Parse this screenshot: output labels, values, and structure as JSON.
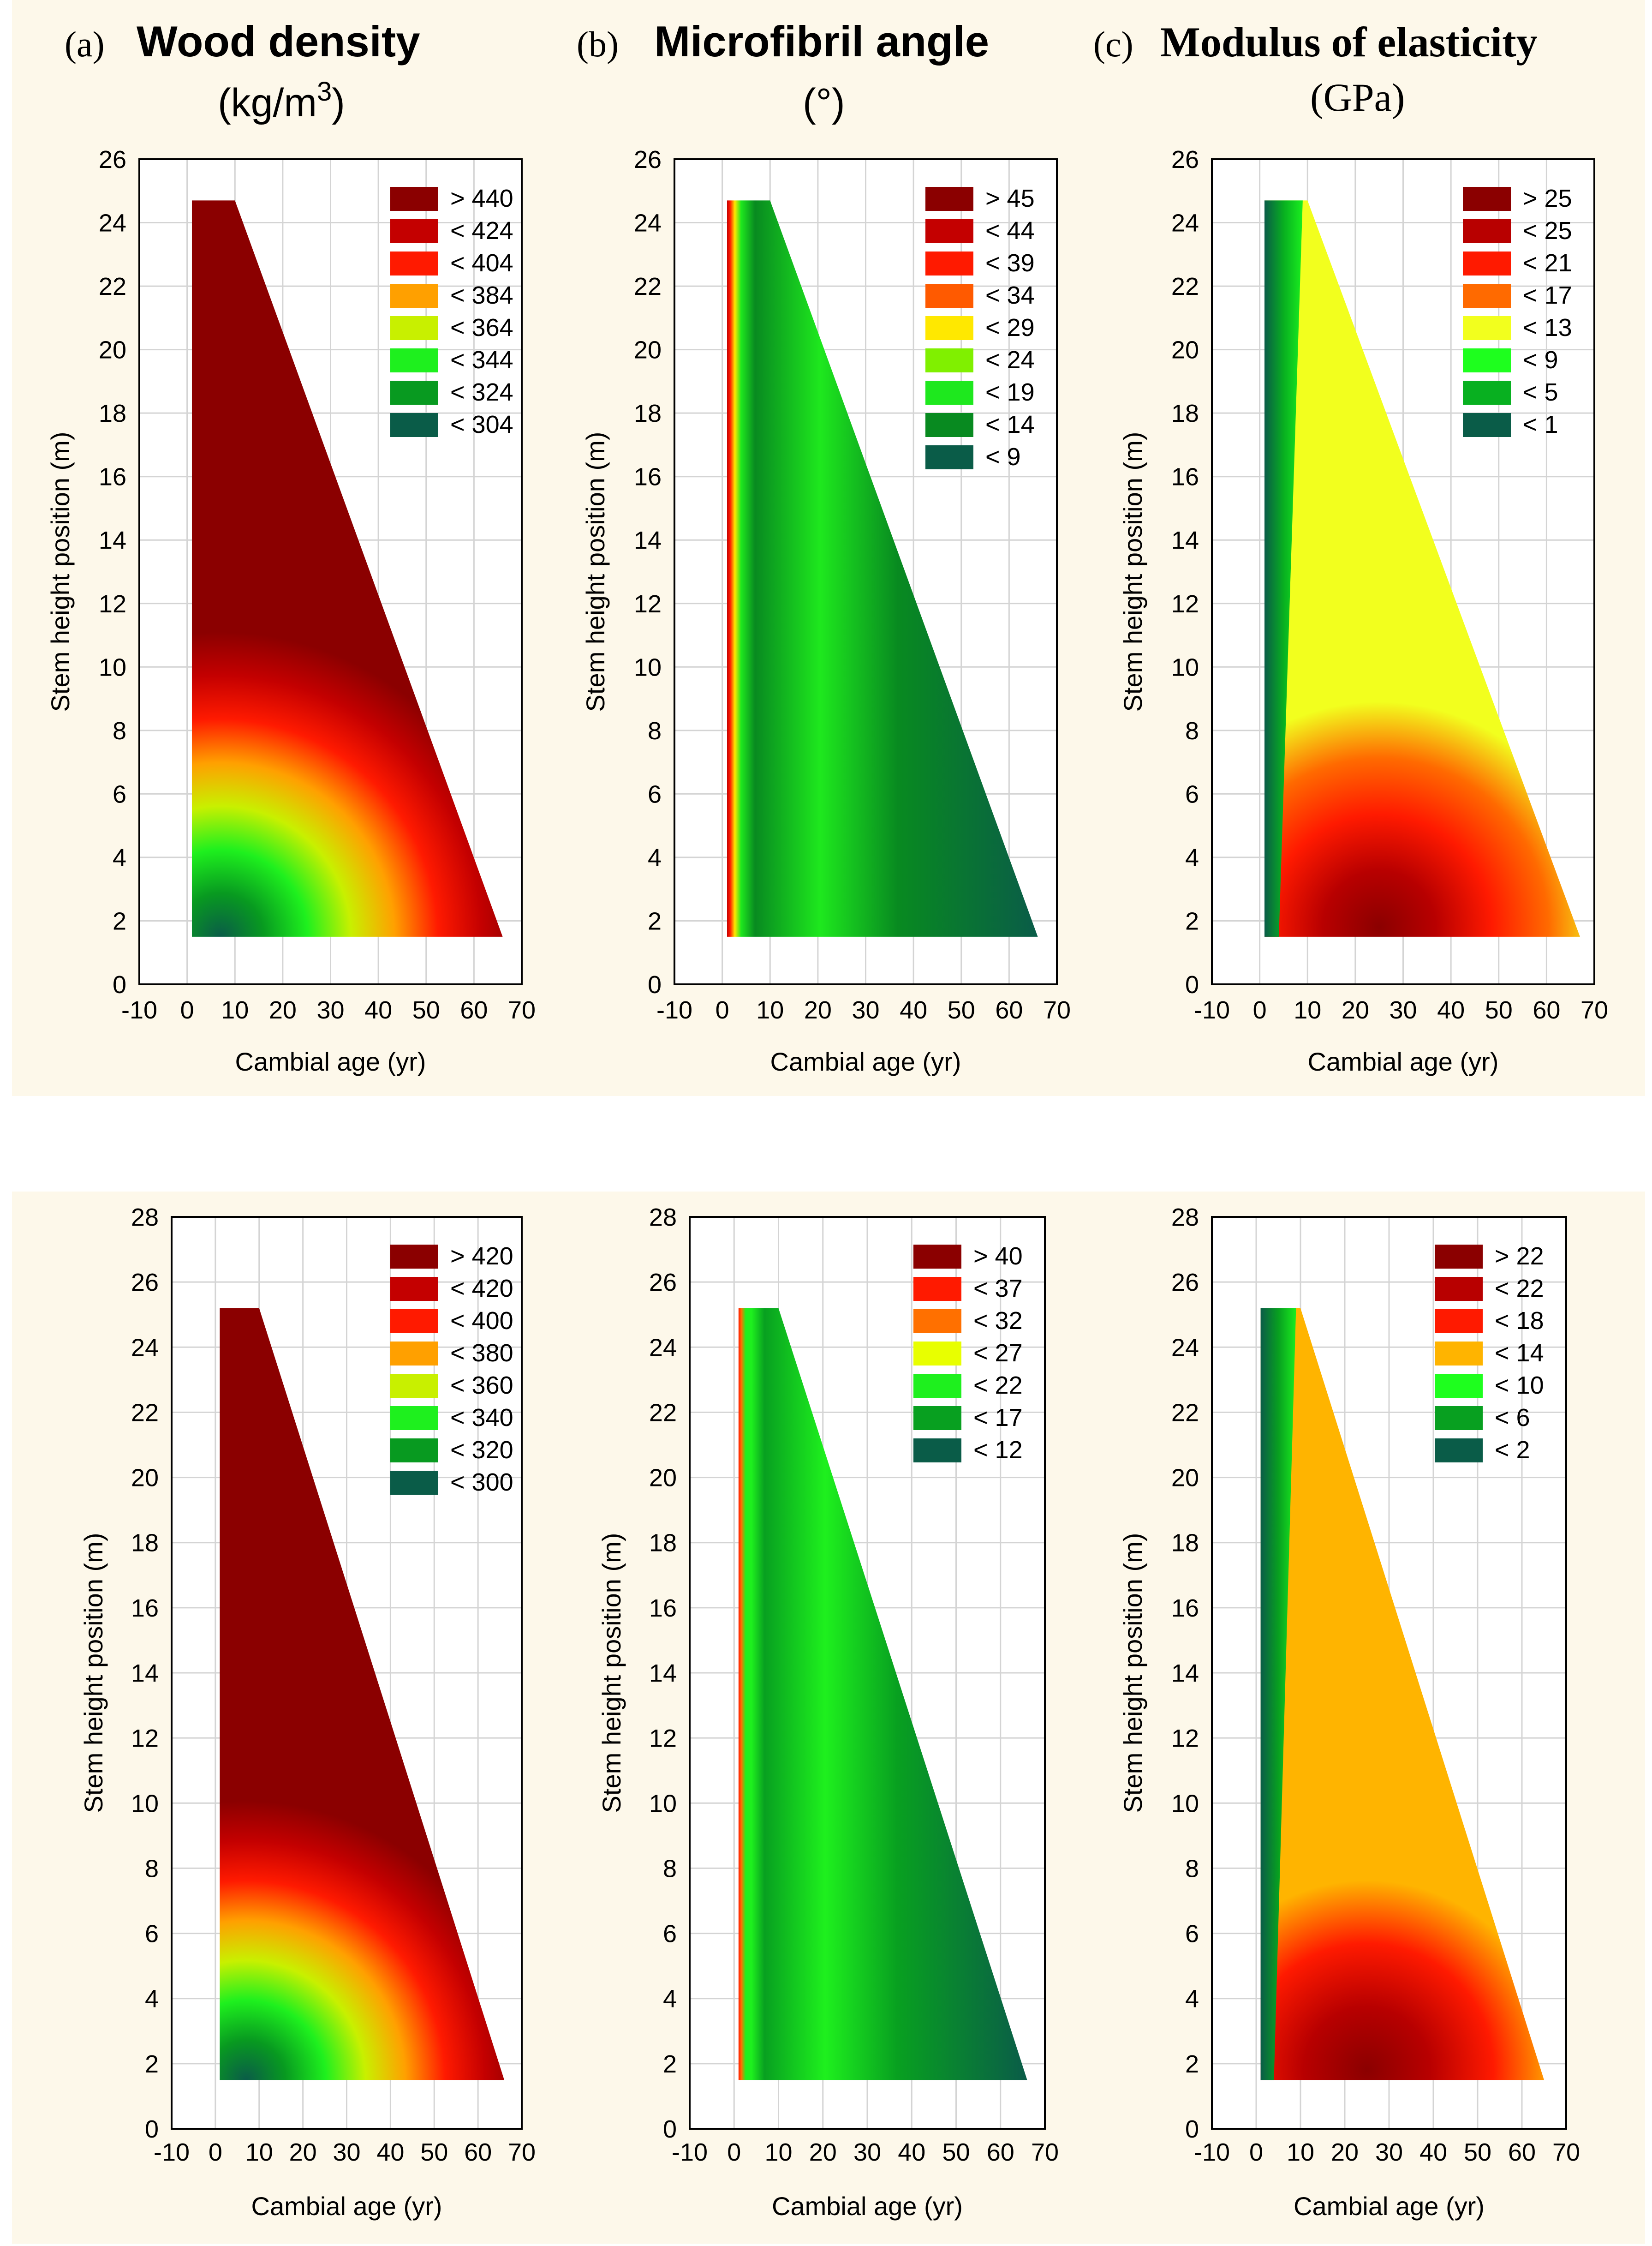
{
  "headers": [
    {
      "letter": "(a)",
      "title": "Wood density",
      "unit_base": "(kg/m",
      "unit_sup": "3",
      "unit_end": ")"
    },
    {
      "letter": "(b)",
      "title": "Microfibril angle",
      "unit_base": "(°)",
      "unit_sup": "",
      "unit_end": ""
    },
    {
      "letter": "(c)",
      "title": "Modulus of elasticity",
      "unit_base": "(GPa)",
      "unit_sup": "",
      "unit_end": ""
    }
  ],
  "colors": {
    "panel_bg": "#fdf8ea",
    "grid": "#d4d4d4",
    "axis": "#000000"
  },
  "chart_data": [
    {
      "type": "heatmap",
      "row": 0,
      "col": 0,
      "title": "Wood density (kg/m3)",
      "xlabel": "Cambial age (yr)",
      "ylabel": "Stem height position (m)",
      "xlim": [
        -10,
        70
      ],
      "ylim": [
        0,
        26
      ],
      "xticks": [
        -10,
        0,
        10,
        20,
        30,
        40,
        50,
        60,
        70
      ],
      "yticks": [
        0,
        2,
        4,
        6,
        8,
        10,
        12,
        14,
        16,
        18,
        20,
        22,
        24,
        26
      ],
      "legend": {
        "position": "top-right",
        "items": [
          {
            "label": "> 440",
            "color": "#8b0000"
          },
          {
            "label": "< 424",
            "color": "#c40000"
          },
          {
            "label": "< 404",
            "color": "#ff1a00"
          },
          {
            "label": "< 384",
            "color": "#ffa000"
          },
          {
            "label": "< 364",
            "color": "#c8f000"
          },
          {
            "label": "< 344",
            "color": "#1ef01e"
          },
          {
            "label": "< 324",
            "color": "#089a20"
          },
          {
            "label": "< 304",
            "color": "#0a5c48"
          }
        ]
      },
      "domain": {
        "x_start": 1,
        "x_top_end": 10,
        "x_bottom_end": 66,
        "y_bottom": 1.5,
        "y_top": 24.7
      },
      "pattern": "radial"
    },
    {
      "type": "heatmap",
      "row": 0,
      "col": 1,
      "title": "Microfibril angle (°)",
      "xlabel": "Cambial age (yr)",
      "ylabel": "Stem height position (m)",
      "xlim": [
        -10,
        70
      ],
      "ylim": [
        0,
        26
      ],
      "xticks": [
        -10,
        0,
        10,
        20,
        30,
        40,
        50,
        60,
        70
      ],
      "yticks": [
        0,
        2,
        4,
        6,
        8,
        10,
        12,
        14,
        16,
        18,
        20,
        22,
        24,
        26
      ],
      "legend": {
        "position": "top-right",
        "items": [
          {
            "label": "> 45",
            "color": "#8b0000"
          },
          {
            "label": "< 44",
            "color": "#c40000"
          },
          {
            "label": "< 39",
            "color": "#ff1a00"
          },
          {
            "label": "< 34",
            "color": "#ff5a00"
          },
          {
            "label": "< 29",
            "color": "#ffe800"
          },
          {
            "label": "< 24",
            "color": "#80f000"
          },
          {
            "label": "< 19",
            "color": "#1ee81e"
          },
          {
            "label": "< 14",
            "color": "#088a20"
          },
          {
            "label": "< 9",
            "color": "#0a5c48"
          }
        ]
      },
      "domain": {
        "x_start": 1,
        "x_top_end": 10,
        "x_bottom_end": 66,
        "y_bottom": 1.5,
        "y_top": 24.7
      },
      "pattern": "mfa"
    },
    {
      "type": "heatmap",
      "row": 0,
      "col": 2,
      "title": "Modulus of elasticity (GPa)",
      "xlabel": "Cambial age (yr)",
      "ylabel": "Stem height position (m)",
      "xlim": [
        -10,
        70
      ],
      "ylim": [
        0,
        26
      ],
      "xticks": [
        -10,
        0,
        10,
        20,
        30,
        40,
        50,
        60,
        70
      ],
      "yticks": [
        0,
        2,
        4,
        6,
        8,
        10,
        12,
        14,
        16,
        18,
        20,
        22,
        24,
        26
      ],
      "legend": {
        "position": "top-right",
        "items": [
          {
            "label": "> 25",
            "color": "#8b0000"
          },
          {
            "label": "< 25",
            "color": "#b80000"
          },
          {
            "label": "< 21",
            "color": "#ff1a00"
          },
          {
            "label": "< 17",
            "color": "#ff6a00"
          },
          {
            "label": "< 13",
            "color": "#f2ff1e"
          },
          {
            "label": "< 9",
            "color": "#1eff1e"
          },
          {
            "label": "< 5",
            "color": "#08b020"
          },
          {
            "label": "< 1",
            "color": "#0a5c48"
          }
        ]
      },
      "domain": {
        "x_start": 1,
        "x_top_end": 10,
        "x_bottom_end": 67,
        "y_bottom": 1.5,
        "y_top": 24.7
      },
      "pattern": "moe"
    },
    {
      "type": "heatmap",
      "row": 1,
      "col": 0,
      "title": "Wood density (kg/m3)",
      "xlabel": "Cambial age (yr)",
      "ylabel": "Stem height position (m)",
      "xlim": [
        -10,
        70
      ],
      "ylim": [
        0,
        28
      ],
      "xticks": [
        -10,
        0,
        10,
        20,
        30,
        40,
        50,
        60,
        70
      ],
      "yticks": [
        0,
        2,
        4,
        6,
        8,
        10,
        12,
        14,
        16,
        18,
        20,
        22,
        24,
        26,
        28
      ],
      "legend": {
        "position": "top-right",
        "items": [
          {
            "label": "> 420",
            "color": "#8b0000"
          },
          {
            "label": "< 420",
            "color": "#c40000"
          },
          {
            "label": "< 400",
            "color": "#ff1a00"
          },
          {
            "label": "< 380",
            "color": "#ffa000"
          },
          {
            "label": "< 360",
            "color": "#c8f000"
          },
          {
            "label": "< 340",
            "color": "#1ef01e"
          },
          {
            "label": "< 320",
            "color": "#089a20"
          },
          {
            "label": "< 300",
            "color": "#0a5c48"
          }
        ]
      },
      "domain": {
        "x_start": 1,
        "x_top_end": 10,
        "x_bottom_end": 66,
        "y_bottom": 1.5,
        "y_top": 25.2
      },
      "pattern": "radial"
    },
    {
      "type": "heatmap",
      "row": 1,
      "col": 1,
      "title": "Microfibril angle (°)",
      "xlabel": "Cambial age (yr)",
      "ylabel": "Stem height position (m)",
      "xlim": [
        -10,
        70
      ],
      "ylim": [
        0,
        28
      ],
      "xticks": [
        -10,
        0,
        10,
        20,
        30,
        40,
        50,
        60,
        70
      ],
      "yticks": [
        0,
        2,
        4,
        6,
        8,
        10,
        12,
        14,
        16,
        18,
        20,
        22,
        24,
        26,
        28
      ],
      "legend": {
        "position": "top-right",
        "items": [
          {
            "label": "> 40",
            "color": "#8b0000"
          },
          {
            "label": "< 37",
            "color": "#ff1a00"
          },
          {
            "label": "< 32",
            "color": "#ff7000"
          },
          {
            "label": "< 27",
            "color": "#e8ff00"
          },
          {
            "label": "< 22",
            "color": "#1ef01e"
          },
          {
            "label": "< 17",
            "color": "#08a020"
          },
          {
            "label": "< 12",
            "color": "#0a5c48"
          }
        ]
      },
      "domain": {
        "x_start": 1,
        "x_top_end": 10,
        "x_bottom_end": 66,
        "y_bottom": 1.5,
        "y_top": 25.2
      },
      "pattern": "mfa"
    },
    {
      "type": "heatmap",
      "row": 1,
      "col": 2,
      "title": "Modulus of elasticity (GPa)",
      "xlabel": "Cambial age (yr)",
      "ylabel": "Stem height position (m)",
      "xlim": [
        -10,
        70
      ],
      "ylim": [
        0,
        28
      ],
      "xticks": [
        -10,
        0,
        10,
        20,
        30,
        40,
        50,
        60,
        70
      ],
      "yticks": [
        0,
        2,
        4,
        6,
        8,
        10,
        12,
        14,
        16,
        18,
        20,
        22,
        24,
        26,
        28
      ],
      "legend": {
        "position": "top-right",
        "items": [
          {
            "label": "> 22",
            "color": "#8b0000"
          },
          {
            "label": "< 22",
            "color": "#b80000"
          },
          {
            "label": "< 18",
            "color": "#ff1a00"
          },
          {
            "label": "< 14",
            "color": "#ffb400"
          },
          {
            "label": "< 10",
            "color": "#1eff1e"
          },
          {
            "label": "< 6",
            "color": "#08a020"
          },
          {
            "label": "< 2",
            "color": "#0a5c48"
          }
        ]
      },
      "domain": {
        "x_start": 1,
        "x_top_end": 10,
        "x_bottom_end": 65,
        "y_bottom": 1.5,
        "y_top": 25.2
      },
      "pattern": "moe"
    }
  ]
}
